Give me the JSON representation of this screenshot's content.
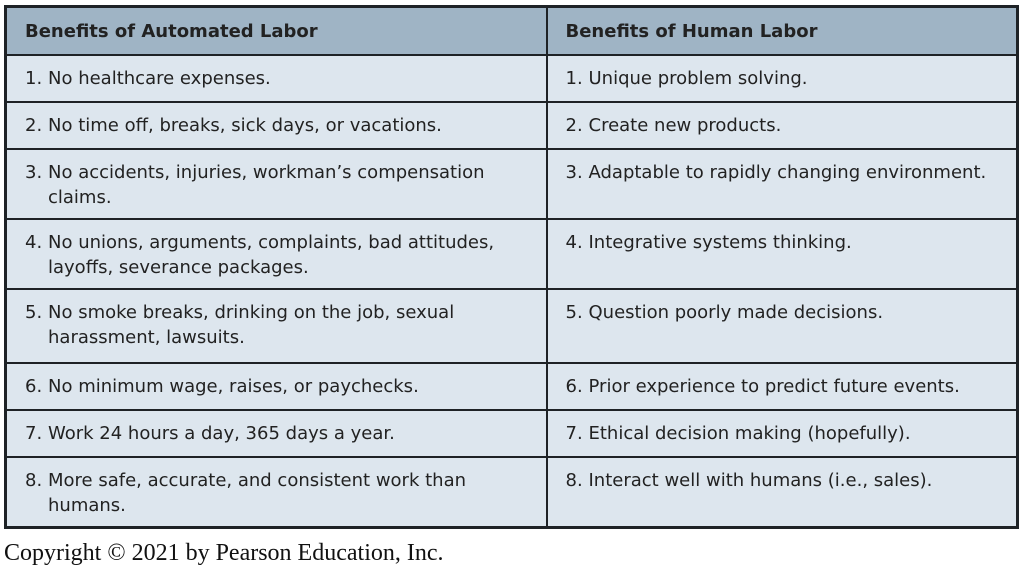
{
  "table": {
    "headers": [
      "Benefits of Automated Labor",
      "Benefits of Human Labor"
    ],
    "rows": [
      [
        {
          "num": "1.",
          "text": "No healthcare expenses."
        },
        {
          "num": "1.",
          "text": "Unique problem solving."
        }
      ],
      [
        {
          "num": "2.",
          "text": "No time off, breaks, sick days, or vacations."
        },
        {
          "num": "2.",
          "text": "Create new products."
        }
      ],
      [
        {
          "num": "3.",
          "text": "No accidents, injuries, workman’s compensation claims."
        },
        {
          "num": "3.",
          "text": "Adaptable to rapidly changing environment."
        }
      ],
      [
        {
          "num": "4.",
          "text": "No unions, arguments, complaints, bad attitudes, layoffs, severance packages."
        },
        {
          "num": "4.",
          "text": "Integrative systems thinking."
        }
      ],
      [
        {
          "num": "5.",
          "text": "No smoke breaks, drinking on the job, sexual harassment, lawsuits."
        },
        {
          "num": "5.",
          "text": "Question poorly made decisions."
        }
      ],
      [
        {
          "num": "6.",
          "text": "No minimum wage, raises, or paychecks."
        },
        {
          "num": "6.",
          "text": "Prior experience to predict future events."
        }
      ],
      [
        {
          "num": "7.",
          "text": "Work 24 hours a day, 365 days a year."
        },
        {
          "num": "7.",
          "text": "Ethical decision making (hopefully)."
        }
      ],
      [
        {
          "num": "8.",
          "text": "More safe, accurate, and consistent work than humans."
        },
        {
          "num": "8.",
          "text": "Interact well with humans (i.e., sales)."
        }
      ]
    ]
  },
  "copyright": "Copyright © 2021 by Pearson Education, Inc.",
  "colors": {
    "header_bg": "#9fb4c5",
    "cell_bg": "#dde6ee",
    "border": "#1e2226"
  }
}
